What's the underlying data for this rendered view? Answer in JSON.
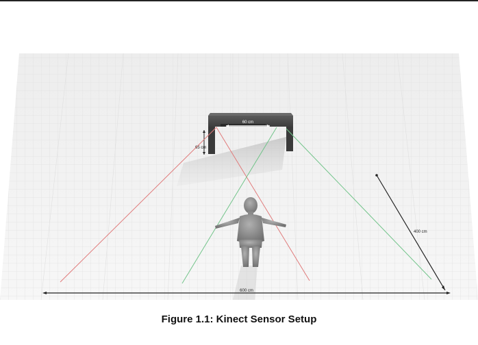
{
  "figure": {
    "caption": "Figure 1.1: Kinect Sensor Setup"
  },
  "labels": {
    "table_width": "60 cm",
    "table_height": "65 cm",
    "depth": "400 cm",
    "width": "600 cm"
  },
  "colors": {
    "floor": "#f3f3f3",
    "grid": "#dcdcdc",
    "table": "#4a4a4a",
    "person": "#8c8c8c",
    "red_line": "#e07a7a",
    "green_line": "#72c48a",
    "dimension_line": "#222222"
  }
}
